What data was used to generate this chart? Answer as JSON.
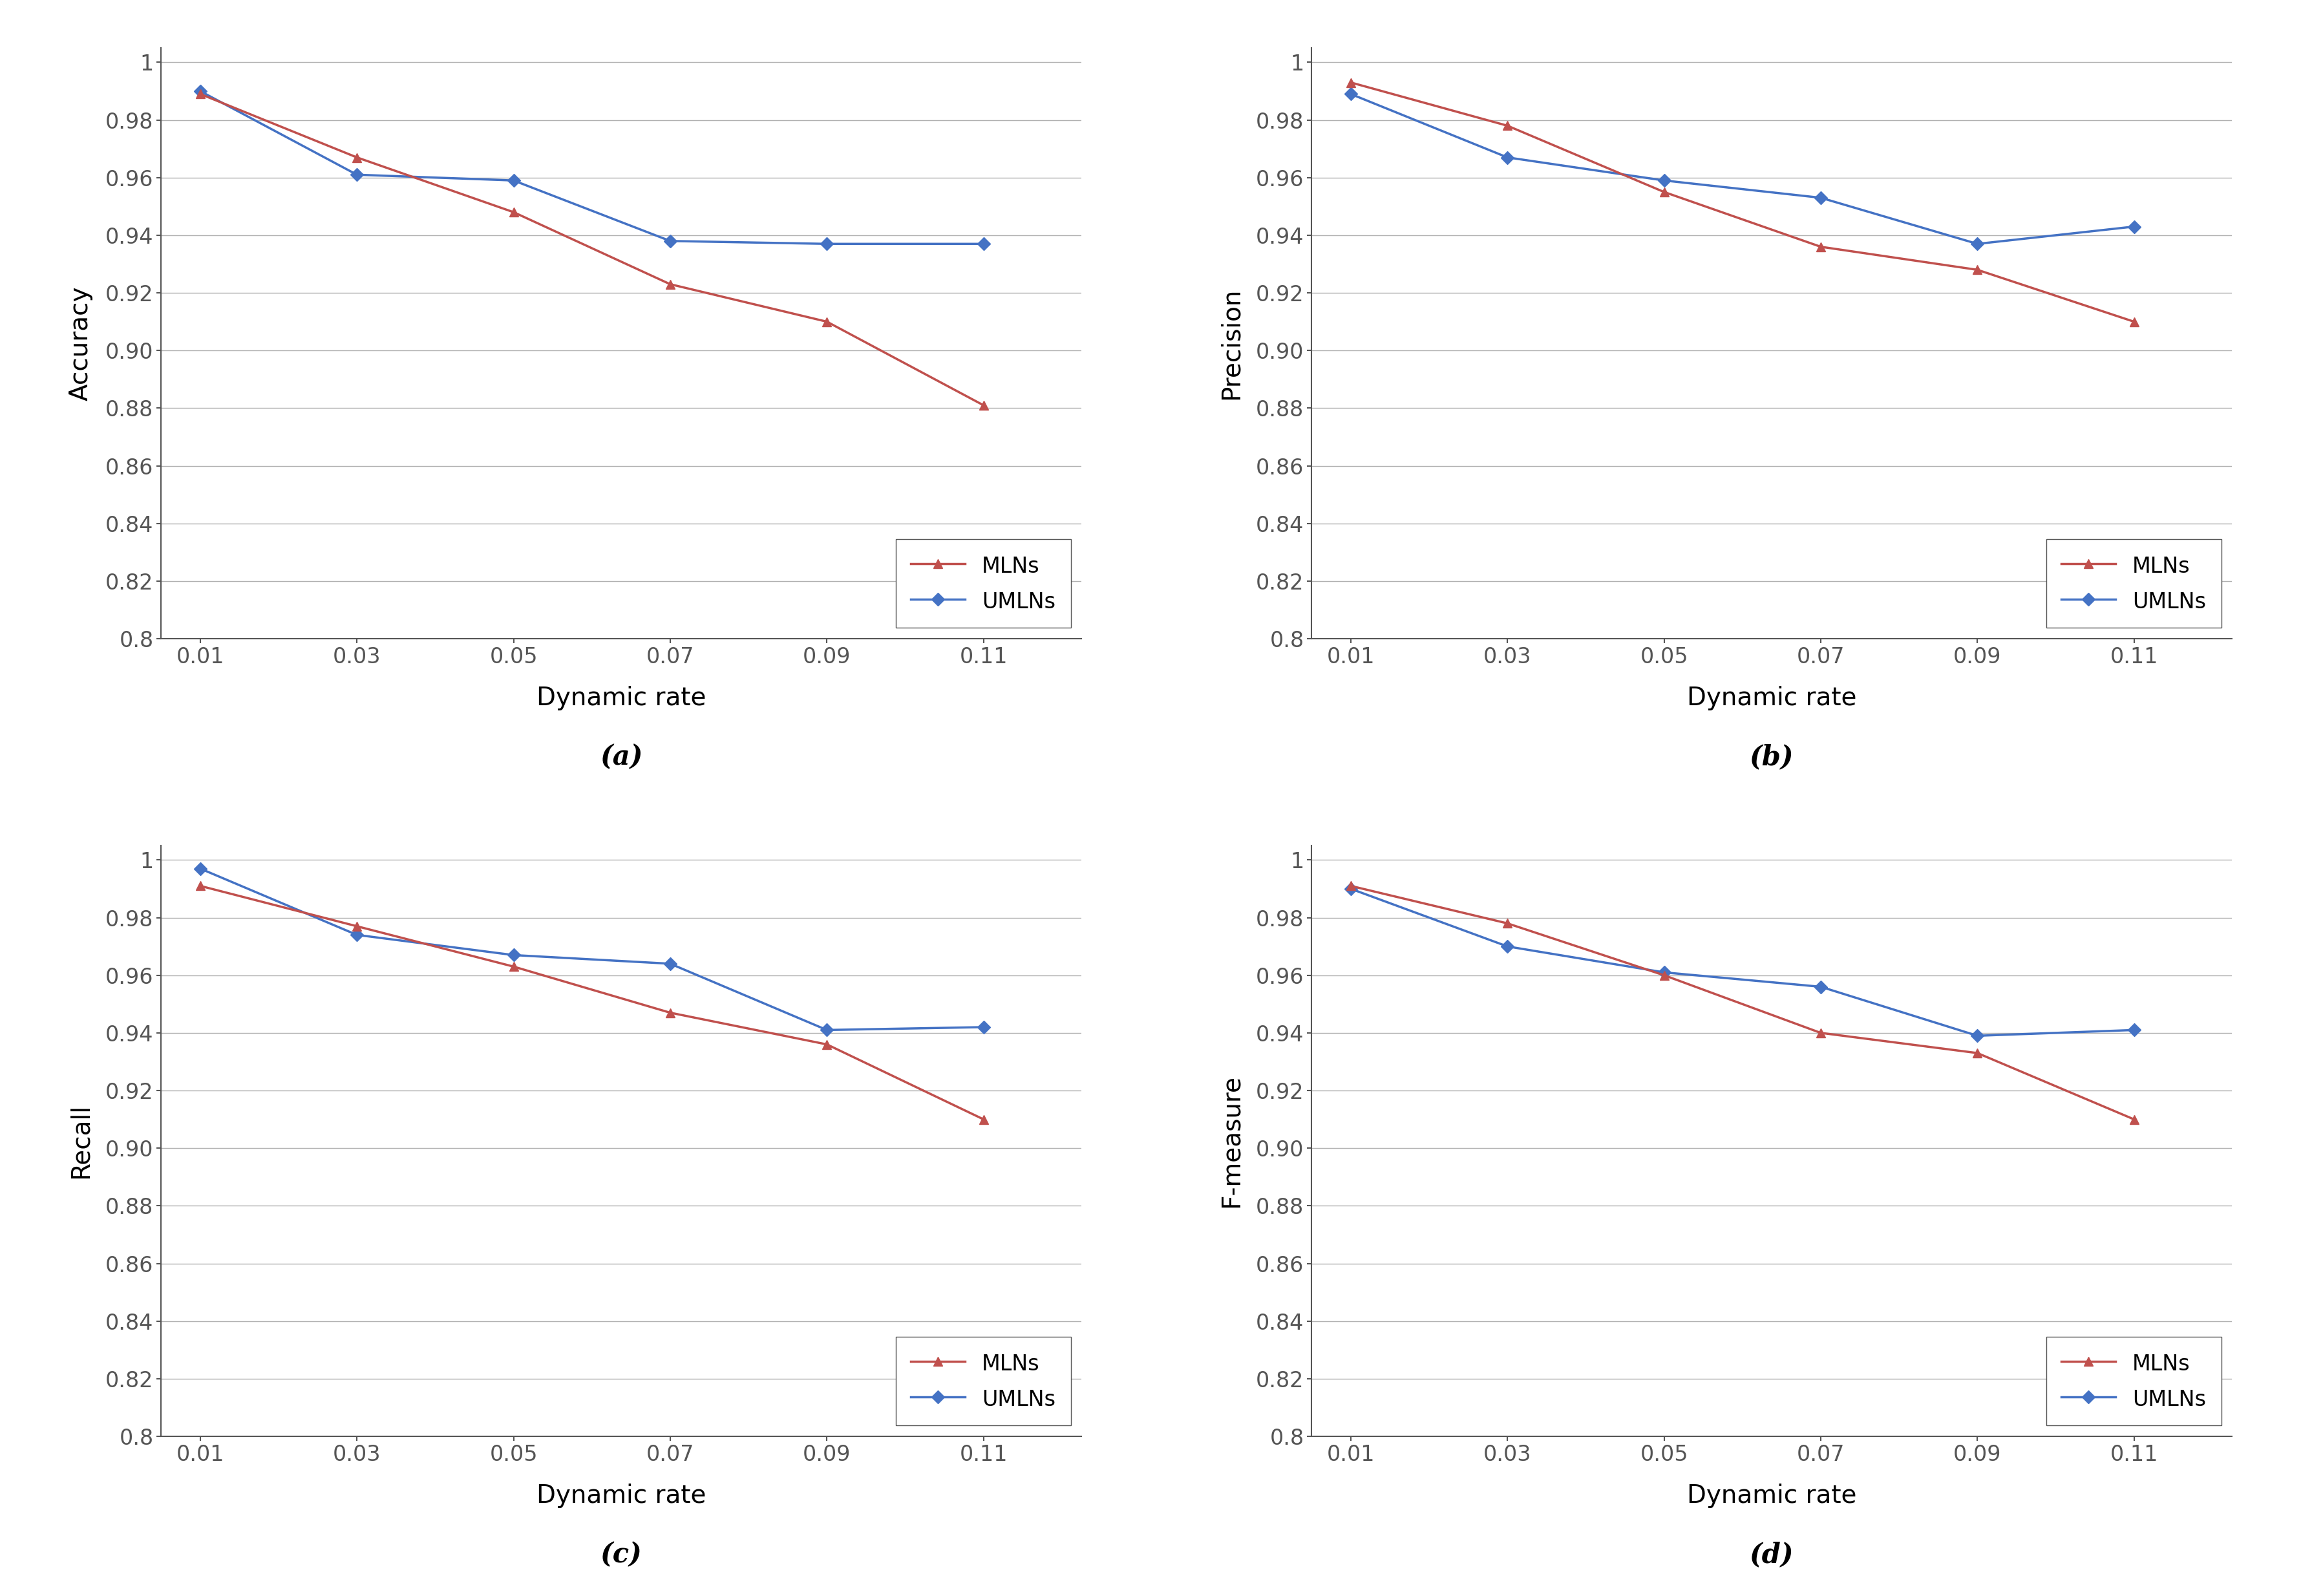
{
  "x": [
    0.01,
    0.03,
    0.05,
    0.07,
    0.09,
    0.11
  ],
  "accuracy": {
    "MLNs": [
      0.989,
      0.967,
      0.948,
      0.923,
      0.91,
      0.881
    ],
    "UMLNs": [
      0.99,
      0.961,
      0.959,
      0.938,
      0.937,
      0.937
    ]
  },
  "precision": {
    "MLNs": [
      0.993,
      0.978,
      0.955,
      0.936,
      0.928,
      0.91
    ],
    "UMLNs": [
      0.989,
      0.967,
      0.959,
      0.953,
      0.937,
      0.943
    ]
  },
  "recall": {
    "MLNs": [
      0.991,
      0.977,
      0.963,
      0.947,
      0.936,
      0.91
    ],
    "UMLNs": [
      0.997,
      0.974,
      0.967,
      0.964,
      0.941,
      0.942
    ]
  },
  "fmeasure": {
    "MLNs": [
      0.991,
      0.978,
      0.96,
      0.94,
      0.933,
      0.91
    ],
    "UMLNs": [
      0.99,
      0.97,
      0.961,
      0.956,
      0.939,
      0.941
    ]
  },
  "ylim": [
    0.8,
    1.005
  ],
  "yticks": [
    0.8,
    0.82,
    0.84,
    0.86,
    0.88,
    0.9,
    0.92,
    0.94,
    0.96,
    0.98,
    1.0
  ],
  "color_mln": "#C0504D",
  "color_umln": "#4472C4",
  "xlabel": "Dynamic rate",
  "ylabels": [
    "Accuracy",
    "Precision",
    "Recall",
    "F-measure"
  ],
  "subplot_labels": [
    "(a)",
    "(b)",
    "(c)",
    "(d)"
  ],
  "legend_labels": [
    "MLNs",
    "UMLNs"
  ],
  "background_color": "#FFFFFF",
  "grid_color": "#B0B0B0",
  "line_width": 2.5,
  "marker_size": 10
}
